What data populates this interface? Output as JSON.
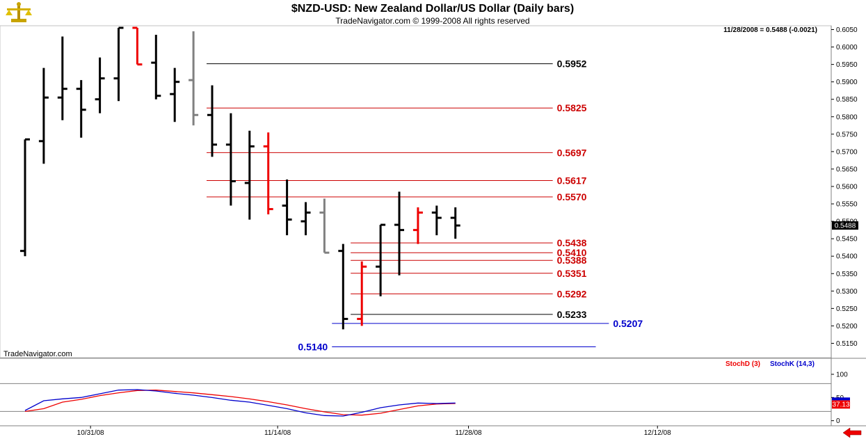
{
  "header": {
    "title": "$NZD-USD:  New Zealand Dollar/US Dollar  (Daily bars)",
    "copyright": "TradeNavigator.com © 1999-2008 All rights reserved",
    "last_info": "11/28/2008 = 0.5488 (-0.0021)",
    "watermark": "TradeNavigator.com",
    "logo_icon": "scales-logo-icon"
  },
  "colors": {
    "up": "#000000",
    "down": "#ee0000",
    "neutral": "#808080",
    "stochD": "#ee0000",
    "stochK": "#0000cc",
    "level_black": "#000000",
    "level_red": "#cc0000",
    "level_blue": "#0000cc"
  },
  "chart_data": [
    {
      "type": "ohlc",
      "title": "$NZD-USD:  New Zealand Dollar/US Dollar  (Daily bars)",
      "ylim": [
        0.5125,
        0.6055
      ],
      "y_ticks": [
        "0.6050",
        "0.6000",
        "0.5950",
        "0.5900",
        "0.5850",
        "0.5800",
        "0.5750",
        "0.5700",
        "0.5650",
        "0.5600",
        "0.5550",
        "0.5500",
        "0.5450",
        "0.5400",
        "0.5350",
        "0.5300",
        "0.5250",
        "0.5200",
        "0.5150"
      ],
      "x_ticks": [
        {
          "label": "10/31/08",
          "index": 3.5
        },
        {
          "label": "11/14/08",
          "index": 13.5
        },
        {
          "label": "11/28/08",
          "index": 23.7
        },
        {
          "label": "12/12/08",
          "index": 33.8
        }
      ],
      "last_price": "0.5488",
      "bars": [
        {
          "open": 0.5415,
          "high": 0.5735,
          "low": 0.54,
          "close": 0.5735,
          "color": "up"
        },
        {
          "open": 0.573,
          "high": 0.594,
          "low": 0.5665,
          "close": 0.5855,
          "color": "up"
        },
        {
          "open": 0.5855,
          "high": 0.603,
          "low": 0.579,
          "close": 0.588,
          "color": "up"
        },
        {
          "open": 0.588,
          "high": 0.5905,
          "low": 0.574,
          "close": 0.582,
          "color": "up"
        },
        {
          "open": 0.585,
          "high": 0.597,
          "low": 0.581,
          "close": 0.591,
          "color": "up"
        },
        {
          "open": 0.591,
          "high": 0.6055,
          "low": 0.5845,
          "close": 0.6055,
          "color": "up"
        },
        {
          "open": 0.6055,
          "high": 0.6055,
          "low": 0.595,
          "close": 0.595,
          "color": "down"
        },
        {
          "open": 0.5955,
          "high": 0.6035,
          "low": 0.585,
          "close": 0.586,
          "color": "up"
        },
        {
          "open": 0.5865,
          "high": 0.594,
          "low": 0.5785,
          "close": 0.59,
          "color": "up"
        },
        {
          "open": 0.5905,
          "high": 0.6045,
          "low": 0.5775,
          "close": 0.5805,
          "color": "neutral"
        },
        {
          "open": 0.5805,
          "high": 0.589,
          "low": 0.5685,
          "close": 0.572,
          "color": "up"
        },
        {
          "open": 0.572,
          "high": 0.581,
          "low": 0.5545,
          "close": 0.5615,
          "color": "up"
        },
        {
          "open": 0.561,
          "high": 0.576,
          "low": 0.5505,
          "close": 0.5715,
          "color": "up"
        },
        {
          "open": 0.5715,
          "high": 0.5755,
          "low": 0.552,
          "close": 0.5535,
          "color": "down"
        },
        {
          "open": 0.5545,
          "high": 0.562,
          "low": 0.546,
          "close": 0.5505,
          "color": "up"
        },
        {
          "open": 0.55,
          "high": 0.5555,
          "low": 0.546,
          "close": 0.5525,
          "color": "up"
        },
        {
          "open": 0.5525,
          "high": 0.5565,
          "low": 0.541,
          "close": 0.541,
          "color": "neutral"
        },
        {
          "open": 0.5415,
          "high": 0.5435,
          "low": 0.519,
          "close": 0.522,
          "color": "up"
        },
        {
          "open": 0.522,
          "high": 0.5385,
          "low": 0.52,
          "close": 0.537,
          "color": "down"
        },
        {
          "open": 0.537,
          "high": 0.549,
          "low": 0.5285,
          "close": 0.549,
          "color": "up"
        },
        {
          "open": 0.549,
          "high": 0.5585,
          "low": 0.5345,
          "close": 0.5475,
          "color": "up"
        },
        {
          "open": 0.5475,
          "high": 0.554,
          "low": 0.5435,
          "close": 0.5525,
          "color": "down"
        },
        {
          "open": 0.5525,
          "high": 0.5545,
          "low": 0.546,
          "close": 0.551,
          "color": "up"
        },
        {
          "open": 0.551,
          "high": 0.554,
          "low": 0.545,
          "close": 0.5488,
          "color": "up"
        }
      ],
      "levels": [
        {
          "value": 0.5952,
          "label": "0.5952",
          "color": "level_black",
          "x_from": 10.0,
          "x_to": 28.5,
          "label_pos": "right"
        },
        {
          "value": 0.5825,
          "label": "0.5825",
          "color": "level_red",
          "x_from": 10.0,
          "x_to": 28.5,
          "label_pos": "right"
        },
        {
          "value": 0.5697,
          "label": "0.5697",
          "color": "level_red",
          "x_from": 10.0,
          "x_to": 28.5,
          "label_pos": "right"
        },
        {
          "value": 0.5617,
          "label": "0.5617",
          "color": "level_red",
          "x_from": 10.0,
          "x_to": 28.5,
          "label_pos": "right"
        },
        {
          "value": 0.557,
          "label": "0.5570",
          "color": "level_red",
          "x_from": 10.0,
          "x_to": 28.5,
          "label_pos": "right"
        },
        {
          "value": 0.5438,
          "label": "0.5438",
          "color": "level_red",
          "x_from": 17.7,
          "x_to": 28.5,
          "label_pos": "right"
        },
        {
          "value": 0.541,
          "label": "0.5410",
          "color": "level_red",
          "x_from": 17.7,
          "x_to": 28.5,
          "label_pos": "right"
        },
        {
          "value": 0.5388,
          "label": "0.5388",
          "color": "level_red",
          "x_from": 17.7,
          "x_to": 28.5,
          "label_pos": "right"
        },
        {
          "value": 0.5351,
          "label": "0.5351",
          "color": "level_red",
          "x_from": 17.7,
          "x_to": 28.5,
          "label_pos": "right"
        },
        {
          "value": 0.5292,
          "label": "0.5292",
          "color": "level_red",
          "x_from": 17.7,
          "x_to": 28.5,
          "label_pos": "right"
        },
        {
          "value": 0.5233,
          "label": "0.5233",
          "color": "level_black",
          "x_from": 17.7,
          "x_to": 28.5,
          "label_pos": "right"
        },
        {
          "value": 0.5207,
          "label": "0.5207",
          "color": "level_blue",
          "x_from": 16.7,
          "x_to": 31.5,
          "label_pos": "right"
        },
        {
          "value": 0.514,
          "label": "0.5140",
          "color": "level_blue",
          "x_from": 16.7,
          "x_to": 30.8,
          "label_pos": "left"
        }
      ]
    },
    {
      "type": "line",
      "ylim": [
        -8,
        124
      ],
      "y_ticks": [
        "100",
        "50",
        "0"
      ],
      "guides": [
        80,
        20
      ],
      "last_value": "37.13",
      "series": [
        {
          "name": "StochD (3)",
          "color": "stochD",
          "values": [
            20,
            26,
            40,
            46,
            54,
            60,
            65,
            66,
            63,
            60,
            56,
            52,
            47,
            41,
            34,
            26,
            19,
            13,
            12,
            16,
            24,
            32,
            36,
            37
          ]
        },
        {
          "name": "StochK (14,3)",
          "color": "stochK",
          "values": [
            22,
            43,
            47,
            50,
            58,
            66,
            67,
            64,
            59,
            55,
            50,
            44,
            40,
            33,
            26,
            17,
            11,
            10,
            18,
            28,
            34,
            38,
            37,
            38
          ]
        }
      ]
    }
  ]
}
